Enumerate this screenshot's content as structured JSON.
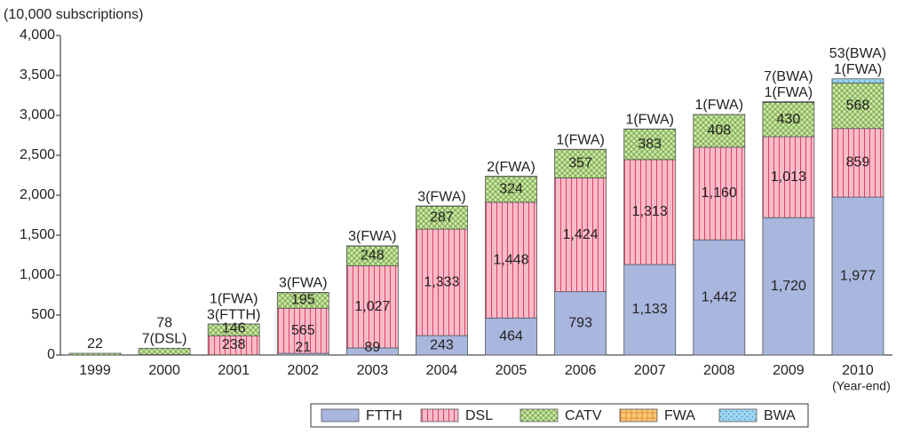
{
  "chart_data": {
    "type": "bar",
    "stacked": true,
    "y_axis_label": "(10,000 subscriptions)",
    "annotation": "(Year-end)",
    "categories": [
      "1999",
      "2000",
      "2001",
      "2002",
      "2003",
      "2004",
      "2005",
      "2006",
      "2007",
      "2008",
      "2009",
      "2010"
    ],
    "series": [
      {
        "name": "FTTH",
        "color": "#a9b6de",
        "values": [
          null,
          null,
          3,
          21,
          89,
          243,
          464,
          793,
          1133,
          1442,
          1720,
          1977
        ],
        "value_labels": [
          null,
          null,
          "3(FTTH)",
          "21",
          "89",
          "243",
          "464",
          "793",
          "1,133",
          "1,442",
          "1,720",
          "1,977"
        ]
      },
      {
        "name": "DSL",
        "color": "#f7bcc8",
        "values": [
          null,
          7,
          238,
          565,
          1027,
          1333,
          1448,
          1424,
          1313,
          1160,
          1013,
          859
        ],
        "value_labels": [
          null,
          "7(DSL)",
          "238",
          "565",
          "1,027",
          "1,333",
          "1,448",
          "1,424",
          "1,313",
          "1,160",
          "1,013",
          "859"
        ]
      },
      {
        "name": "CATV",
        "color": "#cfe6a8",
        "values": [
          22,
          78,
          146,
          195,
          248,
          287,
          324,
          357,
          383,
          408,
          430,
          568
        ],
        "value_labels": [
          "22",
          "78",
          "146",
          "195",
          "248",
          "287",
          "324",
          "357",
          "383",
          "408",
          "430",
          "568"
        ]
      },
      {
        "name": "FWA",
        "color": "#f8c87a",
        "values": [
          null,
          null,
          1,
          3,
          3,
          3,
          2,
          1,
          1,
          1,
          1,
          1
        ],
        "value_labels": [
          null,
          null,
          "1(FWA)",
          "3(FWA)",
          "3(FWA)",
          "3(FWA)",
          "2(FWA)",
          "1(FWA)",
          "1(FWA)",
          "1(FWA)",
          "1(FWA)",
          "1(FWA)"
        ]
      },
      {
        "name": "BWA",
        "color": "#9fd4f0",
        "values": [
          null,
          null,
          null,
          null,
          null,
          null,
          null,
          null,
          null,
          null,
          7,
          53
        ],
        "value_labels": [
          null,
          null,
          null,
          null,
          null,
          null,
          null,
          null,
          null,
          null,
          "7(BWA)",
          "53(BWA)"
        ]
      }
    ],
    "ylim": [
      0,
      4000
    ],
    "yticks": [
      0,
      500,
      {
        "value": 1000,
        "label": "1,000"
      },
      {
        "value": 1500,
        "label": "1,500"
      },
      {
        "value": 2000,
        "label": "2,000"
      },
      {
        "value": 2500,
        "label": "2,500"
      },
      {
        "value": 3000,
        "label": "3,000"
      },
      {
        "value": 3500,
        "label": "3,500"
      },
      {
        "value": 4000,
        "label": "4,000"
      }
    ],
    "legend": "bottom"
  }
}
